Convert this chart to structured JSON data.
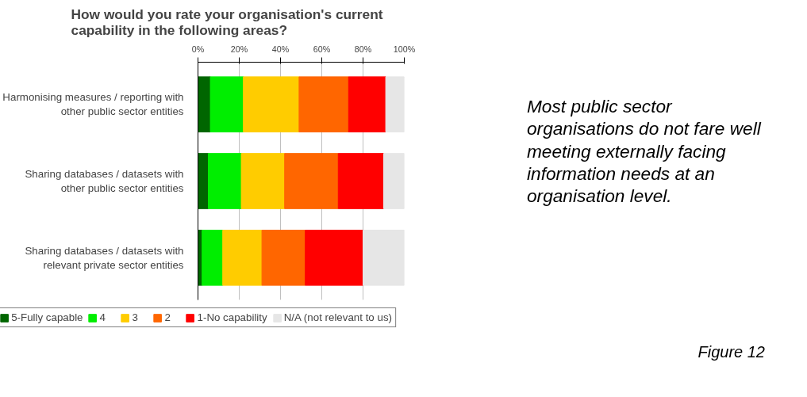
{
  "chart_data": {
    "type": "bar",
    "orientation": "horizontal",
    "stacked": true,
    "title": "How would you rate your organisation's current capability in the following areas?",
    "categories": [
      "Harmonising measures / reporting with other public sector entities",
      "Sharing databases / datasets with other public sector entities",
      "Sharing databases / datasets with relevant private sector entities"
    ],
    "series": [
      {
        "name": "5-Fully capable",
        "color": "#006600",
        "values": [
          6,
          5,
          2
        ]
      },
      {
        "name": "4",
        "color": "#00ee00",
        "values": [
          16,
          16,
          10
        ]
      },
      {
        "name": "3",
        "color": "#ffcc00",
        "values": [
          27,
          21,
          19
        ]
      },
      {
        "name": "2",
        "color": "#ff6600",
        "values": [
          24,
          26,
          21
        ]
      },
      {
        "name": "1-No capability",
        "color": "#ff0000",
        "values": [
          18,
          22,
          28
        ]
      },
      {
        "name": "N/A (not relevant to us)",
        "color": "#e6e6e6",
        "values": [
          9,
          10,
          20
        ]
      }
    ],
    "xlim": [
      0,
      100
    ],
    "xticks": [
      {
        "value": 0,
        "label": "0%"
      },
      {
        "value": 20,
        "label": "20%"
      },
      {
        "value": 40,
        "label": "40%"
      },
      {
        "value": 60,
        "label": "60%"
      },
      {
        "value": 80,
        "label": "80%"
      },
      {
        "value": 100,
        "label": "100%"
      }
    ],
    "grid": "x",
    "legend": "bottom",
    "annotations": [
      "Most public sector organisations do not fare well meeting externally facing information needs at an organisation level.",
      "Figure 12"
    ]
  }
}
